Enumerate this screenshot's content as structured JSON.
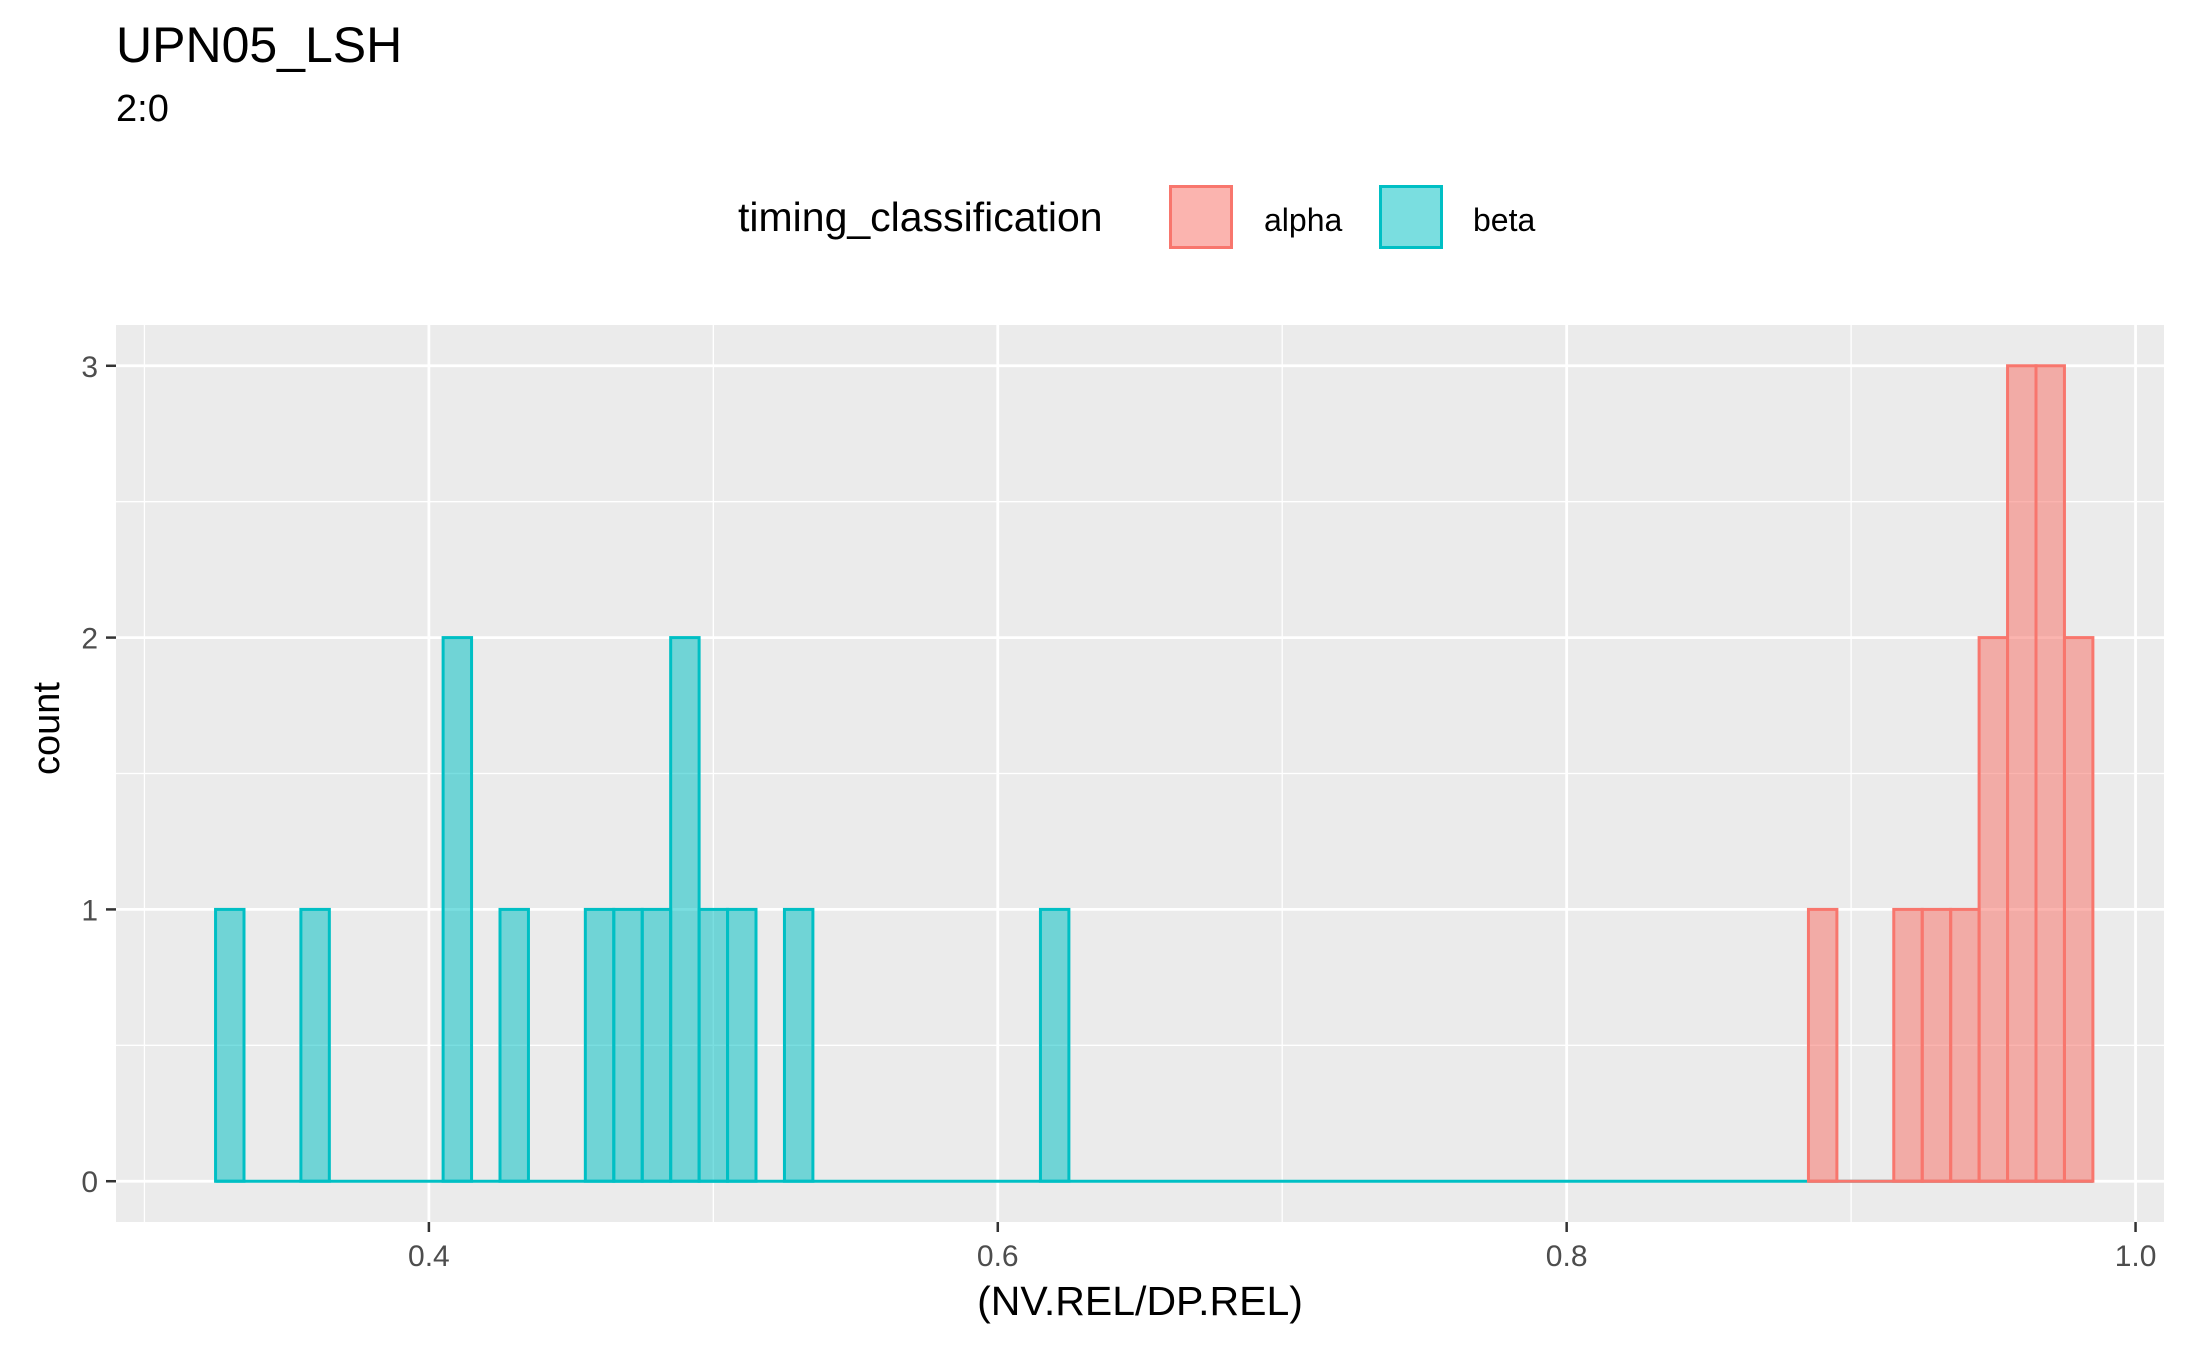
{
  "chart_data": {
    "type": "bar",
    "title": "UPN05_LSH",
    "subtitle": "2:0",
    "xlabel": "(NV.REL/DP.REL)",
    "ylabel": "count",
    "xlim": [
      0.29,
      1.01
    ],
    "ylim": [
      -0.15,
      3.15
    ],
    "x_ticks": [
      0.4,
      0.6,
      0.8,
      1.0
    ],
    "x_tick_labels": [
      "0.4",
      "0.6",
      "0.8",
      "1.0"
    ],
    "y_ticks": [
      0,
      1,
      2,
      3
    ],
    "y_tick_labels": [
      "0",
      "1",
      "2",
      "3"
    ],
    "bin_width": 0.01,
    "legend": {
      "title": "timing_classification",
      "position": "top",
      "entries": [
        "alpha",
        "beta"
      ]
    },
    "series": [
      {
        "name": "alpha",
        "fill": "#F8766D",
        "bins": [
          {
            "x": 0.89,
            "count": 1
          },
          {
            "x": 0.92,
            "count": 1
          },
          {
            "x": 0.93,
            "count": 1
          },
          {
            "x": 0.94,
            "count": 1
          },
          {
            "x": 0.95,
            "count": 2
          },
          {
            "x": 0.96,
            "count": 3
          },
          {
            "x": 0.97,
            "count": 3
          },
          {
            "x": 0.98,
            "count": 2
          }
        ],
        "range": [
          0.885,
          0.985
        ]
      },
      {
        "name": "beta",
        "fill": "#00BFC4",
        "bins": [
          {
            "x": 0.33,
            "count": 1
          },
          {
            "x": 0.36,
            "count": 1
          },
          {
            "x": 0.41,
            "count": 2
          },
          {
            "x": 0.43,
            "count": 1
          },
          {
            "x": 0.46,
            "count": 1
          },
          {
            "x": 0.47,
            "count": 1
          },
          {
            "x": 0.48,
            "count": 1
          },
          {
            "x": 0.49,
            "count": 2
          },
          {
            "x": 0.5,
            "count": 1
          },
          {
            "x": 0.51,
            "count": 1
          },
          {
            "x": 0.53,
            "count": 1
          },
          {
            "x": 0.62,
            "count": 1
          }
        ],
        "range": [
          0.325,
          0.985
        ]
      }
    ],
    "grid": true,
    "panel_background": "#EBEBEB"
  }
}
